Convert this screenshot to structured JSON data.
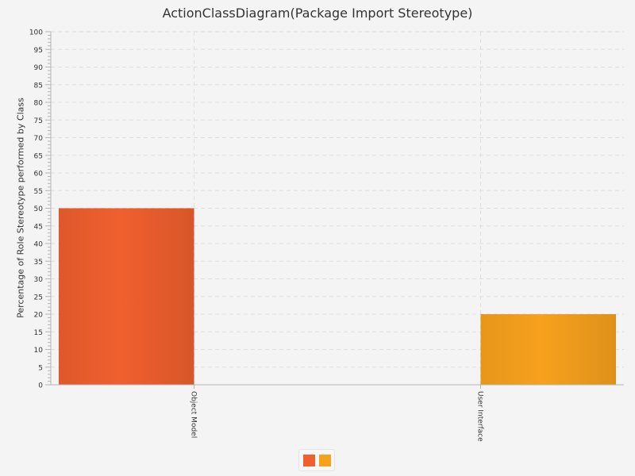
{
  "chart_data": {
    "type": "bar",
    "title": "ActionClassDiagram(Package Import Stereotype)",
    "xlabel": "",
    "ylabel": "Percentage of Role Stereotype performed by Class",
    "categories": [
      "Object Model",
      "User Interface"
    ],
    "series": [
      {
        "values": [
          50,
          0
        ],
        "color": "#f05f2e"
      },
      {
        "values": [
          0,
          20
        ],
        "color": "#f7a11d"
      }
    ],
    "ylim": [
      0,
      100
    ],
    "yticks": [
      0,
      5,
      10,
      15,
      20,
      25,
      30,
      35,
      40,
      45,
      50,
      55,
      60,
      65,
      70,
      75,
      80,
      85,
      90,
      95,
      100
    ],
    "grid": true,
    "legend": "bottom"
  }
}
